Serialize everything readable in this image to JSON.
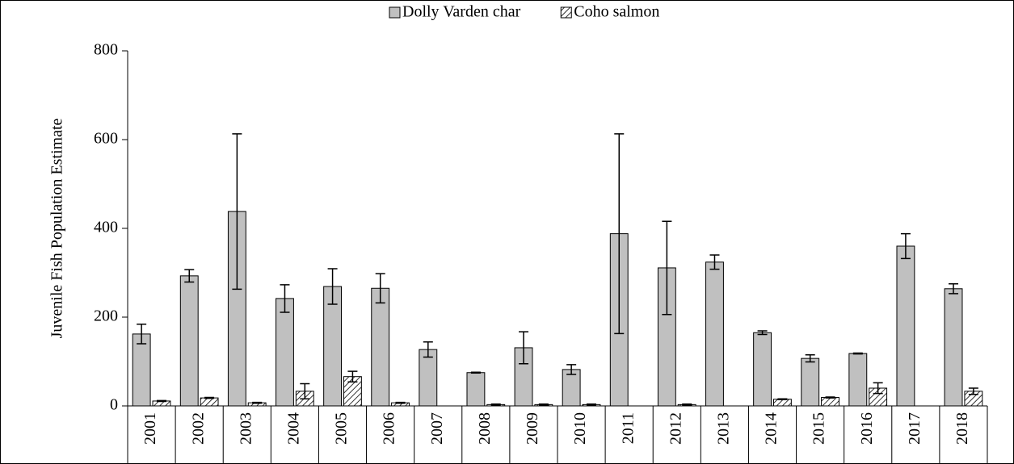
{
  "chart_data": {
    "type": "bar",
    "ylabel": "Juvenile Fish Population Estimate",
    "categories": [
      "2001",
      "2002",
      "2003",
      "2004",
      "2005",
      "2006",
      "2007",
      "2008",
      "2009",
      "2010",
      "2011",
      "2012",
      "2013",
      "2014",
      "2015",
      "2016",
      "2017",
      "2018"
    ],
    "series": [
      {
        "name": "Dolly Varden char",
        "color": "#c0c0c0",
        "hatch": false,
        "values": [
          162,
          293,
          438,
          242,
          269,
          265,
          127,
          75,
          131,
          82,
          388,
          311,
          324,
          165,
          107,
          118,
          360,
          264
        ],
        "errors": [
          22,
          14,
          175,
          31,
          40,
          33,
          17,
          1,
          36,
          11,
          225,
          105,
          16,
          4,
          8,
          1,
          28,
          11
        ]
      },
      {
        "name": "Coho salmon",
        "color": "#ffffff",
        "hatch": true,
        "values": [
          11,
          18,
          7,
          33,
          66,
          7,
          null,
          3,
          3,
          3,
          null,
          3,
          null,
          15,
          19,
          40,
          null,
          33
        ],
        "errors": [
          1,
          1,
          1,
          17,
          12,
          1,
          null,
          1,
          1,
          1,
          null,
          1,
          null,
          1,
          1,
          12,
          null,
          7
        ]
      }
    ],
    "ylim": [
      0,
      800
    ],
    "yticks": [
      0,
      200,
      400,
      600,
      800
    ],
    "grid": false,
    "legend": "top"
  }
}
